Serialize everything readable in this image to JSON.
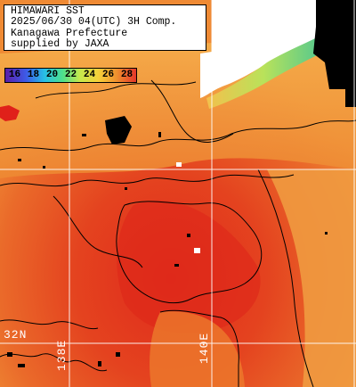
{
  "title": {
    "line1": "HIMAWARI SST",
    "line2": "2025/06/30 04(UTC) 3H Comp.",
    "line3": "Kanagawa Prefecture",
    "line4": "supplied by JAXA"
  },
  "legend": {
    "unit_values": [
      "16",
      "18",
      "20",
      "22",
      "24",
      "26",
      "28"
    ],
    "colors": [
      "#5a1fa8",
      "#3d5be8",
      "#27c0e6",
      "#4ee08a",
      "#c6e84c",
      "#f5d13a",
      "#f0902e",
      "#e4352a"
    ]
  },
  "grid_labels": {
    "lat": "32N",
    "lon_west": "138E",
    "lon_east": "140E"
  },
  "colors": {
    "sea_warm": "#e8762c",
    "sea_hot": "#e23a22",
    "sea_cool": "#f2a14a",
    "coast_cold": "#9fdc6a",
    "land_or_cloud": "#000000",
    "gridline": "#ffffff"
  }
}
